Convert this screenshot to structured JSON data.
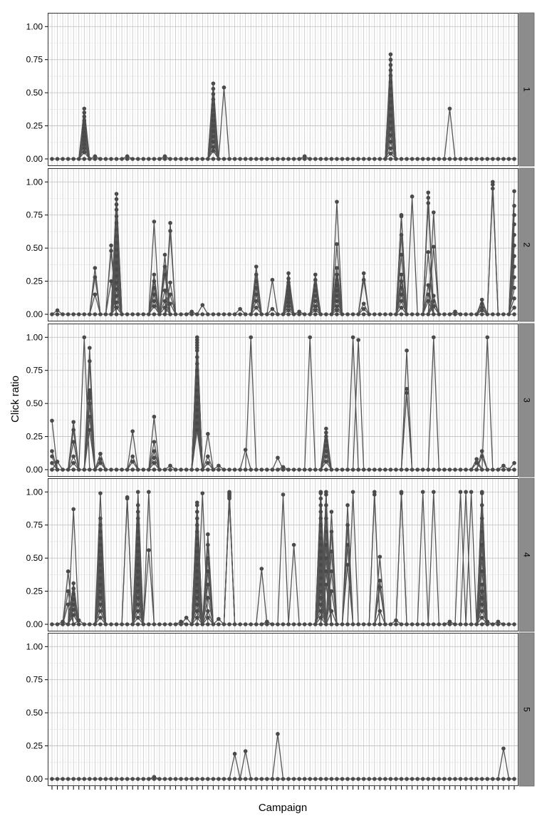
{
  "chart_data": {
    "type": "line",
    "xlabel": "Campaign",
    "ylabel": "Click ratio",
    "ylim": [
      0,
      1.05
    ],
    "yticks": [
      0,
      0.25,
      0.5,
      0.75,
      1
    ],
    "ytick_labels": [
      "0.00",
      "0.25",
      "0.50",
      "0.75",
      "1.00"
    ],
    "x_count": 87,
    "grid": true,
    "legend": "none",
    "colors": {
      "line": "#555555",
      "point": "#4a4a4a",
      "strip": "#8c8c8c",
      "panel_border": "#333333",
      "grid_major": "#bdbdbd",
      "grid_minor": "#e3e3e3"
    },
    "panels": [
      {
        "label": "1",
        "peaks": [
          {
            "x": 6,
            "values": [
              0.38,
              0.35,
              0.32,
              0.29,
              0.26,
              0.23,
              0.2,
              0.17,
              0.14,
              0.11,
              0.08,
              0.05
            ]
          },
          {
            "x": 8,
            "values": [
              0.02
            ]
          },
          {
            "x": 14,
            "values": [
              0.02
            ]
          },
          {
            "x": 21,
            "values": [
              0.02
            ]
          },
          {
            "x": 30,
            "values": [
              0.57,
              0.53,
              0.49,
              0.45,
              0.41,
              0.37,
              0.33,
              0.29,
              0.25,
              0.21,
              0.17,
              0.13,
              0.09,
              0.06
            ]
          },
          {
            "x": 32,
            "values": [
              0.54
            ]
          },
          {
            "x": 47,
            "values": [
              0.02
            ]
          },
          {
            "x": 63,
            "values": [
              0.79,
              0.75,
              0.71,
              0.67,
              0.63,
              0.58,
              0.53,
              0.48,
              0.43,
              0.38,
              0.33,
              0.28,
              0.23,
              0.18,
              0.13,
              0.08,
              0.04
            ]
          },
          {
            "x": 74,
            "values": [
              0.38
            ]
          }
        ]
      },
      {
        "label": "2",
        "peaks": [
          {
            "x": 1,
            "values": [
              0.03
            ]
          },
          {
            "x": 8,
            "values": [
              0.35,
              0.28,
              0.15
            ]
          },
          {
            "x": 11,
            "values": [
              0.52,
              0.48,
              0.25
            ]
          },
          {
            "x": 12,
            "values": [
              0.91,
              0.87,
              0.83,
              0.79,
              0.74,
              0.69,
              0.64,
              0.59,
              0.54,
              0.49,
              0.44,
              0.39,
              0.34,
              0.29,
              0.24,
              0.19,
              0.14,
              0.09,
              0.05
            ]
          },
          {
            "x": 19,
            "values": [
              0.7,
              0.3,
              0.25,
              0.2,
              0.15,
              0.1,
              0.06
            ]
          },
          {
            "x": 21,
            "values": [
              0.45,
              0.36,
              0.3,
              0.18,
              0.1,
              0.05
            ]
          },
          {
            "x": 22,
            "values": [
              0.69,
              0.63,
              0.24,
              0.15,
              0.08
            ]
          },
          {
            "x": 26,
            "values": [
              0.02
            ]
          },
          {
            "x": 28,
            "values": [
              0.07
            ]
          },
          {
            "x": 35,
            "values": [
              0.04
            ]
          },
          {
            "x": 38,
            "values": [
              0.36,
              0.3,
              0.25,
              0.2,
              0.15,
              0.1,
              0.05
            ]
          },
          {
            "x": 41,
            "values": [
              0.26,
              0.04
            ]
          },
          {
            "x": 44,
            "values": [
              0.31,
              0.27,
              0.24,
              0.21,
              0.18,
              0.15,
              0.12,
              0.09,
              0.06,
              0.03
            ]
          },
          {
            "x": 46,
            "values": [
              0.02
            ]
          },
          {
            "x": 49,
            "values": [
              0.3,
              0.26,
              0.22,
              0.18,
              0.14,
              0.1,
              0.06,
              0.03
            ]
          },
          {
            "x": 53,
            "values": [
              0.85,
              0.53,
              0.35,
              0.3,
              0.26,
              0.22,
              0.18,
              0.14,
              0.1,
              0.06,
              0.03
            ]
          },
          {
            "x": 58,
            "values": [
              0.31,
              0.26,
              0.08,
              0.04
            ]
          },
          {
            "x": 65,
            "values": [
              0.75,
              0.74,
              0.6,
              0.45,
              0.3,
              0.25,
              0.2,
              0.15,
              0.1,
              0.05
            ]
          },
          {
            "x": 67,
            "values": [
              0.89
            ]
          },
          {
            "x": 70,
            "values": [
              0.92,
              0.88,
              0.84,
              0.47,
              0.22,
              0.15,
              0.1
            ]
          },
          {
            "x": 71,
            "values": [
              0.77,
              0.51,
              0.14,
              0.1,
              0.06
            ]
          },
          {
            "x": 75,
            "values": [
              0.02
            ]
          },
          {
            "x": 80,
            "values": [
              0.11,
              0.08,
              0.05,
              0.03
            ]
          },
          {
            "x": 82,
            "values": [
              1.0,
              0.98,
              0.95
            ]
          },
          {
            "x": 86,
            "values": [
              0.93,
              0.82,
              0.75,
              0.68,
              0.6,
              0.52,
              0.44,
              0.36,
              0.28,
              0.2,
              0.12,
              0.05
            ]
          }
        ]
      },
      {
        "label": "3",
        "peaks": [
          {
            "x": 0,
            "values": [
              0.37,
              0.14,
              0.1,
              0.05
            ]
          },
          {
            "x": 1,
            "values": [
              0.06
            ]
          },
          {
            "x": 4,
            "values": [
              0.36,
              0.3,
              0.21,
              0.1,
              0.05
            ]
          },
          {
            "x": 6,
            "values": [
              1.0
            ]
          },
          {
            "x": 7,
            "values": [
              0.92,
              0.82,
              0.6,
              0.58,
              0.56,
              0.54,
              0.5,
              0.4,
              0.3
            ]
          },
          {
            "x": 9,
            "values": [
              0.12,
              0.08,
              0.05
            ]
          },
          {
            "x": 15,
            "values": [
              0.29,
              0.1,
              0.06
            ]
          },
          {
            "x": 19,
            "values": [
              0.4,
              0.21,
              0.14,
              0.09,
              0.05
            ]
          },
          {
            "x": 22,
            "values": [
              0.03
            ]
          },
          {
            "x": 27,
            "values": [
              1.0,
              0.98,
              0.96,
              0.94,
              0.92,
              0.9,
              0.85,
              0.8,
              0.75,
              0.7,
              0.65,
              0.6,
              0.55,
              0.5,
              0.45,
              0.4,
              0.35,
              0.3
            ]
          },
          {
            "x": 29,
            "values": [
              0.27,
              0.1,
              0.05
            ]
          },
          {
            "x": 31,
            "values": [
              0.03
            ]
          },
          {
            "x": 36,
            "values": [
              0.15
            ]
          },
          {
            "x": 37,
            "values": [
              1.0
            ]
          },
          {
            "x": 42,
            "values": [
              0.09
            ]
          },
          {
            "x": 43,
            "values": [
              0.02
            ]
          },
          {
            "x": 48,
            "values": [
              1.0
            ]
          },
          {
            "x": 51,
            "values": [
              0.31,
              0.28,
              0.25,
              0.22,
              0.18,
              0.14,
              0.1,
              0.06
            ]
          },
          {
            "x": 56,
            "values": [
              1.0
            ]
          },
          {
            "x": 57,
            "values": [
              0.98
            ]
          },
          {
            "x": 66,
            "values": [
              0.9,
              0.61,
              0.58
            ]
          },
          {
            "x": 71,
            "values": [
              1.0
            ]
          },
          {
            "x": 79,
            "values": [
              0.08,
              0.05
            ]
          },
          {
            "x": 80,
            "values": [
              0.14,
              0.1
            ]
          },
          {
            "x": 81,
            "values": [
              1.0
            ]
          },
          {
            "x": 84,
            "values": [
              0.03
            ]
          },
          {
            "x": 86,
            "values": [
              0.05
            ]
          }
        ]
      },
      {
        "label": "4",
        "peaks": [
          {
            "x": 2,
            "values": [
              0.02
            ]
          },
          {
            "x": 3,
            "values": [
              0.4,
              0.25,
              0.15
            ]
          },
          {
            "x": 4,
            "values": [
              0.87,
              0.31,
              0.27,
              0.23,
              0.19,
              0.15,
              0.11,
              0.07
            ]
          },
          {
            "x": 5,
            "values": [
              0.03
            ]
          },
          {
            "x": 9,
            "values": [
              0.99,
              0.8,
              0.75,
              0.7,
              0.65,
              0.6,
              0.55,
              0.5,
              0.45,
              0.4,
              0.35,
              0.3,
              0.25,
              0.2,
              0.15,
              0.1,
              0.05
            ]
          },
          {
            "x": 14,
            "values": [
              0.96,
              0.95
            ]
          },
          {
            "x": 16,
            "values": [
              1.0,
              0.9,
              0.85,
              0.8,
              0.75,
              0.7,
              0.65,
              0.6,
              0.55,
              0.5,
              0.45,
              0.4,
              0.35,
              0.3,
              0.25,
              0.2,
              0.15,
              0.1,
              0.05
            ]
          },
          {
            "x": 18,
            "values": [
              1.0,
              0.56
            ]
          },
          {
            "x": 24,
            "values": [
              0.02
            ]
          },
          {
            "x": 25,
            "values": [
              0.05
            ]
          },
          {
            "x": 27,
            "values": [
              0.92,
              0.9,
              0.85,
              0.8,
              0.75,
              0.7,
              0.65,
              0.6,
              0.55,
              0.5,
              0.45,
              0.4,
              0.35,
              0.3,
              0.25,
              0.2,
              0.15,
              0.1,
              0.05
            ]
          },
          {
            "x": 28,
            "values": [
              0.99
            ]
          },
          {
            "x": 29,
            "values": [
              0.68,
              0.6,
              0.5,
              0.4,
              0.3,
              0.2,
              0.1,
              0.05
            ]
          },
          {
            "x": 31,
            "values": [
              0.04
            ]
          },
          {
            "x": 33,
            "values": [
              1.0,
              0.99,
              0.98,
              0.97,
              0.96,
              0.95
            ]
          },
          {
            "x": 39,
            "values": [
              0.42
            ]
          },
          {
            "x": 40,
            "values": [
              0.02
            ]
          },
          {
            "x": 43,
            "values": [
              0.98
            ]
          },
          {
            "x": 45,
            "values": [
              0.6
            ]
          },
          {
            "x": 50,
            "values": [
              1.0,
              0.99,
              0.95,
              0.9,
              0.85,
              0.8,
              0.75,
              0.7,
              0.65,
              0.6,
              0.55,
              0.5,
              0.45,
              0.4,
              0.35,
              0.3,
              0.25,
              0.2,
              0.15,
              0.1,
              0.05
            ]
          },
          {
            "x": 51,
            "values": [
              1.0,
              0.98,
              0.9,
              0.8,
              0.7,
              0.6,
              0.5,
              0.4,
              0.3
            ]
          },
          {
            "x": 52,
            "values": [
              0.85,
              0.7,
              0.55,
              0.4,
              0.25,
              0.1
            ]
          },
          {
            "x": 55,
            "values": [
              0.9,
              0.75,
              0.6,
              0.45
            ]
          },
          {
            "x": 56,
            "values": [
              1.0
            ]
          },
          {
            "x": 60,
            "values": [
              1.0,
              0.98
            ]
          },
          {
            "x": 61,
            "values": [
              0.51,
              0.33,
              0.28,
              0.1
            ]
          },
          {
            "x": 64,
            "values": [
              0.03
            ]
          },
          {
            "x": 65,
            "values": [
              1.0,
              0.99
            ]
          },
          {
            "x": 69,
            "values": [
              1.0
            ]
          },
          {
            "x": 71,
            "values": [
              1.0
            ]
          },
          {
            "x": 74,
            "values": [
              0.02
            ]
          },
          {
            "x": 76,
            "values": [
              1.0
            ]
          },
          {
            "x": 77,
            "values": [
              1.0
            ]
          },
          {
            "x": 78,
            "values": [
              1.0
            ]
          },
          {
            "x": 80,
            "values": [
              1.0,
              0.99,
              0.9,
              0.8,
              0.7,
              0.6,
              0.5,
              0.4,
              0.3,
              0.25,
              0.2,
              0.15,
              0.1,
              0.05
            ]
          },
          {
            "x": 81,
            "values": [
              0.02
            ]
          },
          {
            "x": 83,
            "values": [
              0.02
            ]
          }
        ]
      },
      {
        "label": "5",
        "peaks": [
          {
            "x": 19,
            "values": [
              0.015
            ]
          },
          {
            "x": 34,
            "values": [
              0.19
            ]
          },
          {
            "x": 36,
            "values": [
              0.21
            ]
          },
          {
            "x": 42,
            "values": [
              0.34
            ]
          },
          {
            "x": 84,
            "values": [
              0.23
            ]
          }
        ]
      }
    ]
  }
}
